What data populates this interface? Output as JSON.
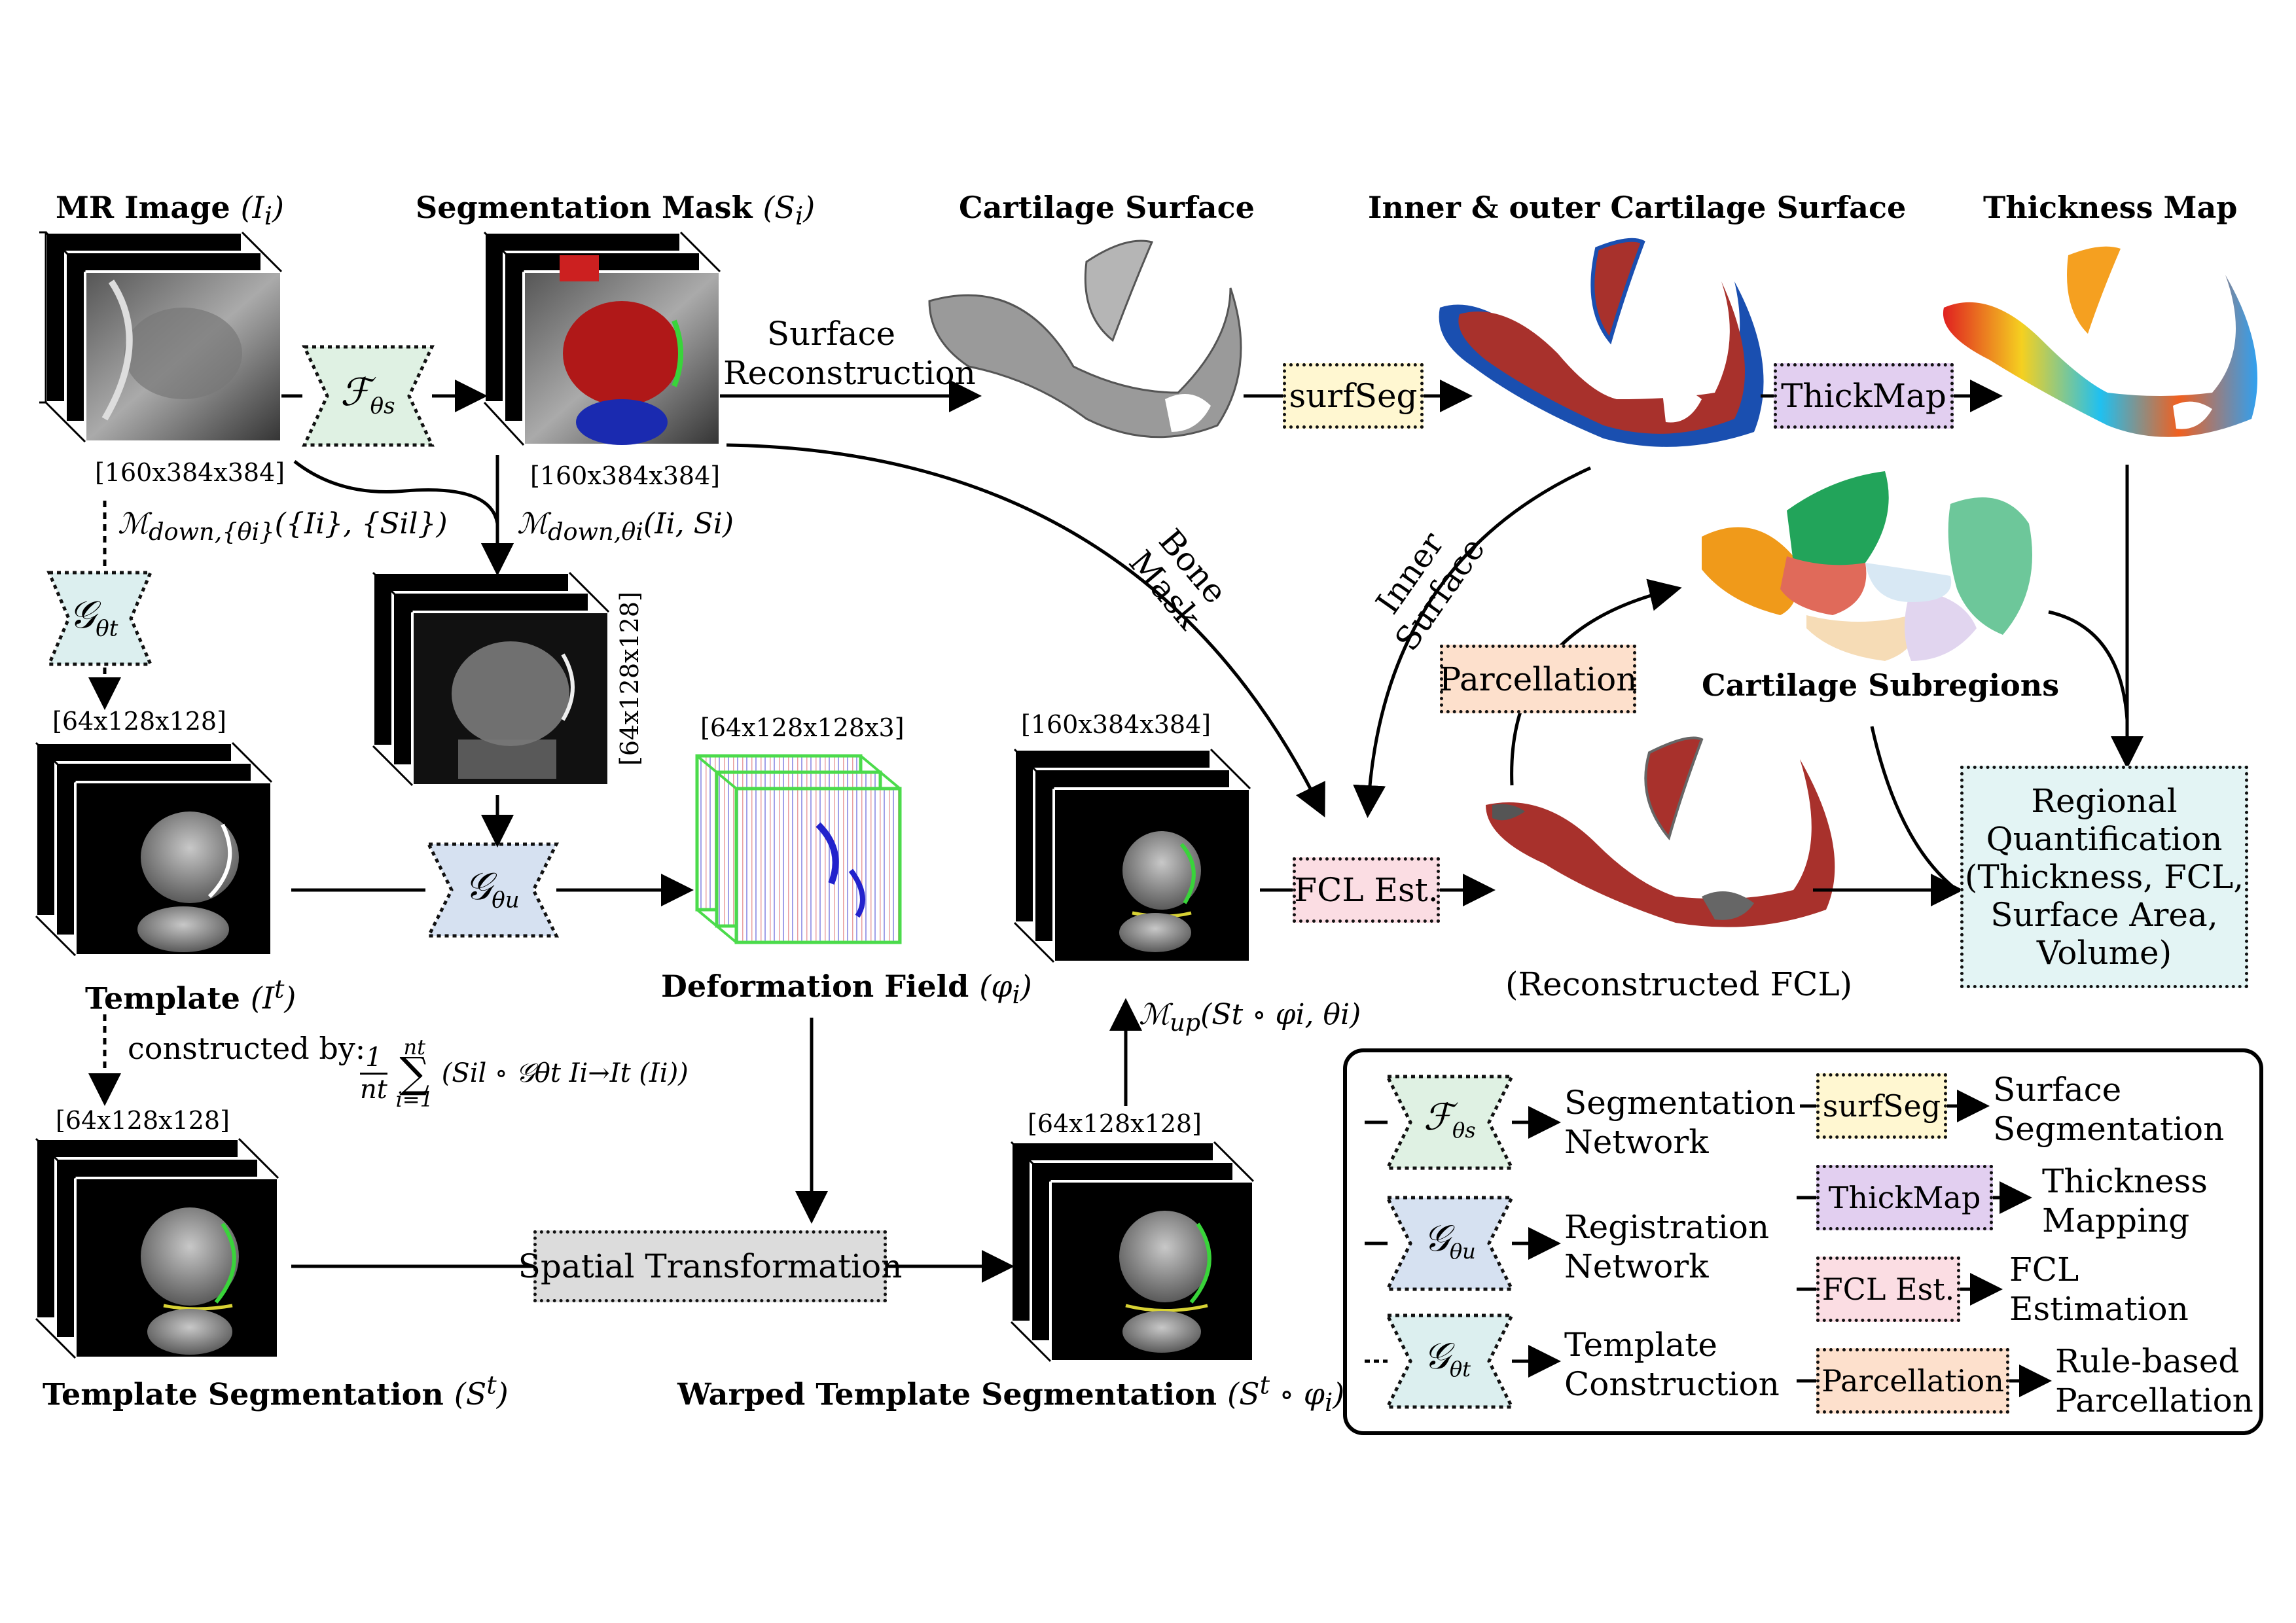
{
  "titles": {
    "mr_image": "MR Image",
    "mr_image_sym": "(I",
    "mr_image_sub": "i",
    "seg_mask": "Segmentation Mask",
    "seg_mask_sym": "(S",
    "seg_mask_sub": "i",
    "cartilage_surface": "Cartilage Surface",
    "inner_outer": "Inner & outer Cartilage Surface",
    "thickness_map": "Thickness Map",
    "cartilage_subregions": "Cartilage Subregions",
    "template": "Template",
    "template_sym": "(I",
    "template_sup": "t",
    "deformation_field": "Deformation Field",
    "deformation_sym": "(φ",
    "deformation_sub": "i",
    "template_seg": "Template Segmentation",
    "template_seg_sym": "(S",
    "template_seg_sup": "t",
    "warped_seg": "Warped Template Segmentation",
    "warped_seg_sym": "(S",
    "warped_seg_sup": "t",
    "warped_seg_rest": " ∘ φ",
    "warped_seg_sub": "i",
    "reconstructed_fcl": "(Reconstructed FCL)"
  },
  "dims": {
    "mr": "[160x384x384]",
    "seg": "[160x384x384]",
    "down": "[64x128x128]",
    "template": "[64x128x128]",
    "deform": "[64x128x128x3]",
    "upsampled": "[160x384x384]",
    "template_seg": "[64x128x128]",
    "warped": "[64x128x128]"
  },
  "edges": {
    "surface_recon_1": "Surface",
    "surface_recon_2": "Reconstruction",
    "bone_mask_1": "Bone",
    "bone_mask_2": "Mask",
    "inner_surface_1": "Inner",
    "inner_surface_2": "Surface",
    "constructed_by": "constructed by:"
  },
  "equations": {
    "m_down_set": "ℳ",
    "m_down_set_sub": "down,{θi}",
    "m_down_set_args": "({Ii}, {Sil})",
    "m_down_i": "ℳ",
    "m_down_i_sub": "down,θi",
    "m_down_i_args": "(Ii, Si)",
    "m_up": "ℳ",
    "m_up_sub": "up",
    "m_up_args": "(St ∘ φi, θi)",
    "sum_frac": "1",
    "sum_den": "nt",
    "sum_top": "nt",
    "sum_bottom": "i=1",
    "sum_body": "(Sil ∘ 𝒢θt Ii→It (Ii))"
  },
  "modules": {
    "surfseg": "surfSeg",
    "thickmap": "ThickMap",
    "parcellation": "Parcellation",
    "fcl_est": "FCL Est.",
    "spatial_transform": "Spatial Transformation",
    "regional_quant": [
      "Regional",
      "Quantification",
      "(Thickness, FCL,",
      "Surface Area,",
      "Volume)"
    ]
  },
  "networks": {
    "f_symbol": "ℱ",
    "f_sub": "θs",
    "g_symbol": "𝒢",
    "g_u_sub": "θu",
    "g_t_sub": "θt"
  },
  "legend": {
    "seg_net": [
      "Segmentation",
      "Network"
    ],
    "reg_net": [
      "Registration",
      "Network"
    ],
    "tmpl_con": [
      "Template",
      "Construction"
    ],
    "surfseg_desc": [
      "Surface",
      "Segmentation"
    ],
    "thickmap_desc": [
      "Thickness",
      "Mapping"
    ],
    "fcl_desc": [
      "FCL",
      "Estimation"
    ],
    "parc_desc": [
      "Rule-based",
      "Parcellation"
    ]
  },
  "colors": {
    "net_f": "#dff1e3",
    "net_g_u": "#d6e1f1",
    "net_g_t": "#dcefef",
    "surfseg": "#fff7d1",
    "thickmap": "#e2cff0",
    "fcl": "#fbdde3",
    "parcellation": "#fde0cc",
    "spatial": "#dcdcdc",
    "regional": "#e3f4f4",
    "cartilage_red": "#a8312c",
    "cartilage_blue": "#1a4fb0",
    "green_line": "#39d43a",
    "yellow_line": "#d8d234"
  }
}
